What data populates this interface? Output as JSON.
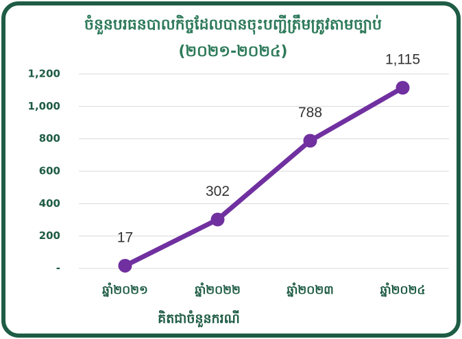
{
  "chart_data": {
    "type": "line",
    "title": "ចំនួនបរធនបាលកិច្ចដែលបានចុះបញ្ជីត្រឹមត្រូវតាមច្បាប់",
    "subtitle": "(២០២១-២០២៤)",
    "x_label": "គិតជាចំនួនករណី",
    "categories": [
      "ឆ្នាំ២០២១",
      "ឆ្នាំ២០២២",
      "ឆ្នាំ២០២៣",
      "ឆ្នាំ២០២៤"
    ],
    "values": [
      17,
      302,
      788,
      1115
    ],
    "value_labels": [
      "17",
      "302",
      "788",
      "1,115"
    ],
    "color": "#7030a0",
    "ylim": [
      0,
      1200
    ],
    "yticks": [
      {
        "value": 0,
        "label": "-"
      },
      200,
      400,
      600,
      800,
      {
        "value": 1000,
        "label": "1,000"
      },
      {
        "value": 1200,
        "label": "1,200"
      }
    ],
    "grid": true
  }
}
